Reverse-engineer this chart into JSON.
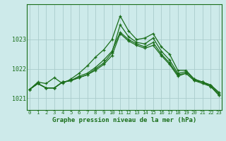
{
  "xlabel": "Graphe pression niveau de la mer (hPa)",
  "x_ticks": [
    0,
    1,
    2,
    3,
    4,
    5,
    6,
    7,
    8,
    9,
    10,
    11,
    12,
    13,
    14,
    15,
    16,
    17,
    18,
    19,
    20,
    21,
    22,
    23
  ],
  "ylim": [
    1020.6,
    1024.2
  ],
  "yticks": [
    1021,
    1022,
    1023
  ],
  "background_color": "#cdeaea",
  "grid_color": "#aacccc",
  "line_color": "#1a6e1a",
  "series": [
    [
      1021.3,
      1021.55,
      1021.5,
      1021.7,
      1021.5,
      1021.65,
      1021.85,
      1022.1,
      1022.4,
      1022.65,
      1023.0,
      1023.8,
      1023.3,
      1023.0,
      1023.05,
      1023.2,
      1022.75,
      1022.5,
      1021.95,
      1021.95,
      1021.65,
      1021.55,
      1021.45,
      1021.2
    ],
    [
      1021.3,
      1021.5,
      1021.35,
      1021.35,
      1021.55,
      1021.6,
      1021.7,
      1021.8,
      1022.0,
      1022.2,
      1022.55,
      1023.5,
      1023.1,
      1022.9,
      1022.85,
      1023.05,
      1022.6,
      1022.3,
      1021.85,
      1021.9,
      1021.65,
      1021.55,
      1021.45,
      1021.15
    ],
    [
      1021.3,
      1021.5,
      1021.35,
      1021.35,
      1021.55,
      1021.6,
      1021.75,
      1021.85,
      1022.05,
      1022.3,
      1022.6,
      1023.25,
      1023.0,
      1022.85,
      1022.75,
      1022.9,
      1022.5,
      1022.2,
      1021.8,
      1021.85,
      1021.6,
      1021.55,
      1021.4,
      1021.1
    ],
    [
      1021.3,
      1021.5,
      1021.35,
      1021.35,
      1021.55,
      1021.6,
      1021.7,
      1021.8,
      1021.95,
      1022.15,
      1022.45,
      1023.2,
      1022.95,
      1022.8,
      1022.7,
      1022.8,
      1022.45,
      1022.15,
      1021.75,
      1021.85,
      1021.6,
      1021.5,
      1021.4,
      1021.1
    ]
  ]
}
